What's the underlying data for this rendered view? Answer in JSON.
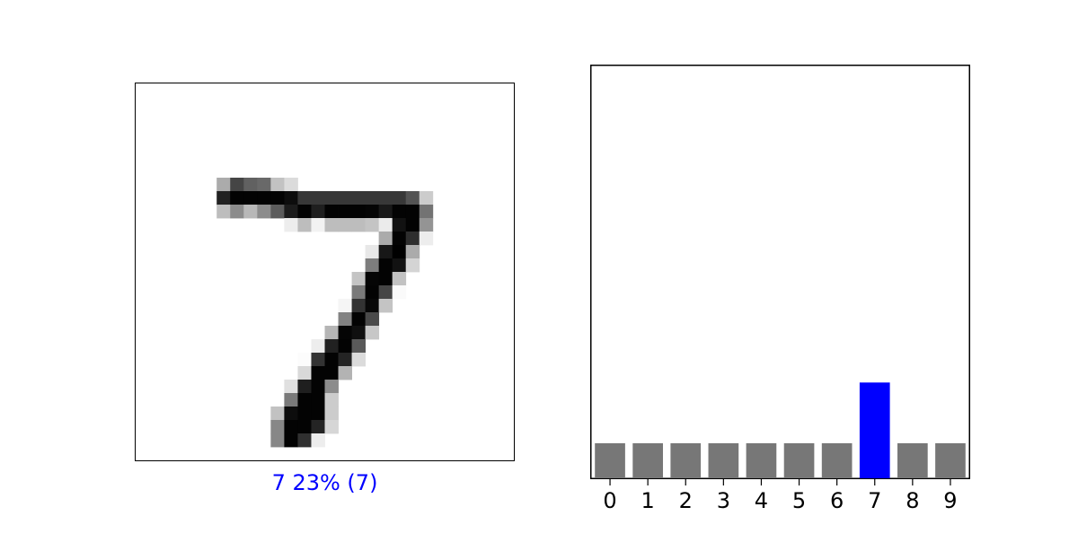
{
  "prediction": {
    "caption": "7 23% (7)",
    "caption_color": "#0000ff"
  },
  "image": {
    "rows": 28,
    "cols": 28,
    "description_free_pixels": [
      [
        0,
        0,
        0,
        0,
        0,
        0,
        0,
        0,
        0,
        0,
        0,
        0,
        0,
        0,
        0,
        0,
        0,
        0,
        0,
        0,
        0,
        0,
        0,
        0,
        0,
        0,
        0,
        0
      ],
      [
        0,
        0,
        0,
        0,
        0,
        0,
        0,
        0,
        0,
        0,
        0,
        0,
        0,
        0,
        0,
        0,
        0,
        0,
        0,
        0,
        0,
        0,
        0,
        0,
        0,
        0,
        0,
        0
      ],
      [
        0,
        0,
        0,
        0,
        0,
        0,
        0,
        0,
        0,
        0,
        0,
        0,
        0,
        0,
        0,
        0,
        0,
        0,
        0,
        0,
        0,
        0,
        0,
        0,
        0,
        0,
        0,
        0
      ],
      [
        0,
        0,
        0,
        0,
        0,
        0,
        0,
        0,
        0,
        0,
        0,
        0,
        0,
        0,
        0,
        0,
        0,
        0,
        0,
        0,
        0,
        0,
        0,
        0,
        0,
        0,
        0,
        0
      ],
      [
        0,
        0,
        0,
        0,
        0,
        0,
        0,
        0,
        0,
        0,
        0,
        0,
        0,
        0,
        0,
        0,
        0,
        0,
        0,
        0,
        0,
        0,
        0,
        0,
        0,
        0,
        0,
        0
      ],
      [
        0,
        0,
        0,
        0,
        0,
        0,
        0,
        0,
        0,
        0,
        0,
        0,
        0,
        0,
        0,
        0,
        0,
        0,
        0,
        0,
        0,
        0,
        0,
        0,
        0,
        0,
        0,
        0
      ],
      [
        0,
        0,
        0,
        0,
        0,
        0,
        0,
        0,
        0,
        0,
        0,
        0,
        0,
        0,
        0,
        0,
        0,
        0,
        0,
        0,
        0,
        0,
        0,
        0,
        0,
        0,
        0,
        0
      ],
      [
        0,
        0,
        0,
        0,
        0,
        0,
        0.33,
        0.73,
        0.62,
        0.59,
        0.24,
        0.14,
        0,
        0,
        0,
        0,
        0,
        0,
        0,
        0,
        0,
        0,
        0,
        0,
        0,
        0,
        0,
        0
      ],
      [
        0,
        0,
        0,
        0,
        0,
        0,
        0.87,
        0.99,
        0.99,
        0.99,
        0.99,
        0.95,
        0.78,
        0.78,
        0.78,
        0.78,
        0.78,
        0.78,
        0.78,
        0.78,
        0.67,
        0.2,
        0,
        0,
        0,
        0,
        0,
        0
      ],
      [
        0,
        0,
        0,
        0,
        0,
        0,
        0.26,
        0.45,
        0.28,
        0.45,
        0.64,
        0.89,
        0.99,
        0.88,
        0.99,
        0.99,
        0.99,
        0.98,
        0.9,
        0.99,
        0.99,
        0.55,
        0,
        0,
        0,
        0,
        0,
        0
      ],
      [
        0,
        0,
        0,
        0,
        0,
        0,
        0,
        0,
        0,
        0,
        0,
        0.07,
        0.26,
        0.05,
        0.26,
        0.26,
        0.26,
        0.23,
        0.08,
        0.93,
        0.99,
        0.42,
        0,
        0,
        0,
        0,
        0,
        0
      ],
      [
        0,
        0,
        0,
        0,
        0,
        0,
        0,
        0,
        0,
        0,
        0,
        0,
        0,
        0,
        0,
        0,
        0,
        0,
        0.33,
        0.99,
        0.82,
        0.07,
        0,
        0,
        0,
        0,
        0,
        0
      ],
      [
        0,
        0,
        0,
        0,
        0,
        0,
        0,
        0,
        0,
        0,
        0,
        0,
        0,
        0,
        0,
        0,
        0,
        0.09,
        0.91,
        1,
        0.33,
        0,
        0,
        0,
        0,
        0,
        0,
        0
      ],
      [
        0,
        0,
        0,
        0,
        0,
        0,
        0,
        0,
        0,
        0,
        0,
        0,
        0,
        0,
        0,
        0,
        0,
        0.51,
        0.99,
        0.93,
        0.17,
        0,
        0,
        0,
        0,
        0,
        0,
        0
      ],
      [
        0,
        0,
        0,
        0,
        0,
        0,
        0,
        0,
        0,
        0,
        0,
        0,
        0,
        0,
        0,
        0,
        0.23,
        0.98,
        0.99,
        0.24,
        0,
        0,
        0,
        0,
        0,
        0,
        0,
        0
      ],
      [
        0,
        0,
        0,
        0,
        0,
        0,
        0,
        0,
        0,
        0,
        0,
        0,
        0,
        0,
        0,
        0,
        0.52,
        0.99,
        0.73,
        0.02,
        0,
        0,
        0,
        0,
        0,
        0,
        0,
        0
      ],
      [
        0,
        0,
        0,
        0,
        0,
        0,
        0,
        0,
        0,
        0,
        0,
        0,
        0,
        0,
        0,
        0.04,
        0.8,
        0.97,
        0.23,
        0,
        0,
        0,
        0,
        0,
        0,
        0,
        0,
        0
      ],
      [
        0,
        0,
        0,
        0,
        0,
        0,
        0,
        0,
        0,
        0,
        0,
        0,
        0,
        0,
        0,
        0.49,
        0.99,
        0.71,
        0,
        0,
        0,
        0,
        0,
        0,
        0,
        0,
        0,
        0
      ],
      [
        0,
        0,
        0,
        0,
        0,
        0,
        0,
        0,
        0,
        0,
        0,
        0,
        0,
        0,
        0.29,
        0.98,
        0.94,
        0.22,
        0,
        0,
        0,
        0,
        0,
        0,
        0,
        0,
        0,
        0
      ],
      [
        0,
        0,
        0,
        0,
        0,
        0,
        0,
        0,
        0,
        0,
        0,
        0,
        0,
        0.07,
        0.87,
        0.99,
        0.65,
        0,
        0,
        0,
        0,
        0,
        0,
        0,
        0,
        0,
        0,
        0
      ],
      [
        0,
        0,
        0,
        0,
        0,
        0,
        0,
        0,
        0,
        0,
        0,
        0,
        0.01,
        0.8,
        0.99,
        0.86,
        0.14,
        0,
        0,
        0,
        0,
        0,
        0,
        0,
        0,
        0,
        0,
        0
      ],
      [
        0,
        0,
        0,
        0,
        0,
        0,
        0,
        0,
        0,
        0,
        0,
        0,
        0.15,
        0.99,
        0.99,
        0.3,
        0,
        0,
        0,
        0,
        0,
        0,
        0,
        0,
        0,
        0,
        0,
        0
      ],
      [
        0,
        0,
        0,
        0,
        0,
        0,
        0,
        0,
        0,
        0,
        0,
        0.12,
        0.88,
        0.99,
        0.45,
        0,
        0,
        0,
        0,
        0,
        0,
        0,
        0,
        0,
        0,
        0,
        0,
        0
      ],
      [
        0,
        0,
        0,
        0,
        0,
        0,
        0,
        0,
        0,
        0,
        0,
        0.52,
        0.99,
        0.99,
        0.2,
        0,
        0,
        0,
        0,
        0,
        0,
        0,
        0,
        0,
        0,
        0,
        0,
        0
      ],
      [
        0,
        0,
        0,
        0,
        0,
        0,
        0,
        0,
        0,
        0,
        0.24,
        0.95,
        0.99,
        0.99,
        0.2,
        0,
        0,
        0,
        0,
        0,
        0,
        0,
        0,
        0,
        0,
        0,
        0,
        0
      ],
      [
        0,
        0,
        0,
        0,
        0,
        0,
        0,
        0,
        0,
        0,
        0.47,
        0.99,
        0.99,
        0.86,
        0.16,
        0,
        0,
        0,
        0,
        0,
        0,
        0,
        0,
        0,
        0,
        0,
        0,
        0
      ],
      [
        0,
        0,
        0,
        0,
        0,
        0,
        0,
        0,
        0,
        0,
        0.47,
        0.99,
        0.81,
        0.07,
        0,
        0,
        0,
        0,
        0,
        0,
        0,
        0,
        0,
        0,
        0,
        0,
        0,
        0
      ],
      [
        0,
        0,
        0,
        0,
        0,
        0,
        0,
        0,
        0,
        0,
        0,
        0,
        0,
        0,
        0,
        0,
        0,
        0,
        0,
        0,
        0,
        0,
        0,
        0,
        0,
        0,
        0,
        0
      ]
    ]
  },
  "chart_data": {
    "type": "bar",
    "categories": [
      "0",
      "1",
      "2",
      "3",
      "4",
      "5",
      "6",
      "7",
      "8",
      "9"
    ],
    "values": [
      0.085,
      0.085,
      0.085,
      0.085,
      0.085,
      0.085,
      0.085,
      0.232,
      0.085,
      0.085
    ],
    "ylim": [
      0,
      1
    ],
    "highlight_index": 7,
    "colors": {
      "default": "#777777",
      "highlight": "#0000ff"
    },
    "title": "",
    "xlabel": "",
    "ylabel": "",
    "grid": false
  }
}
